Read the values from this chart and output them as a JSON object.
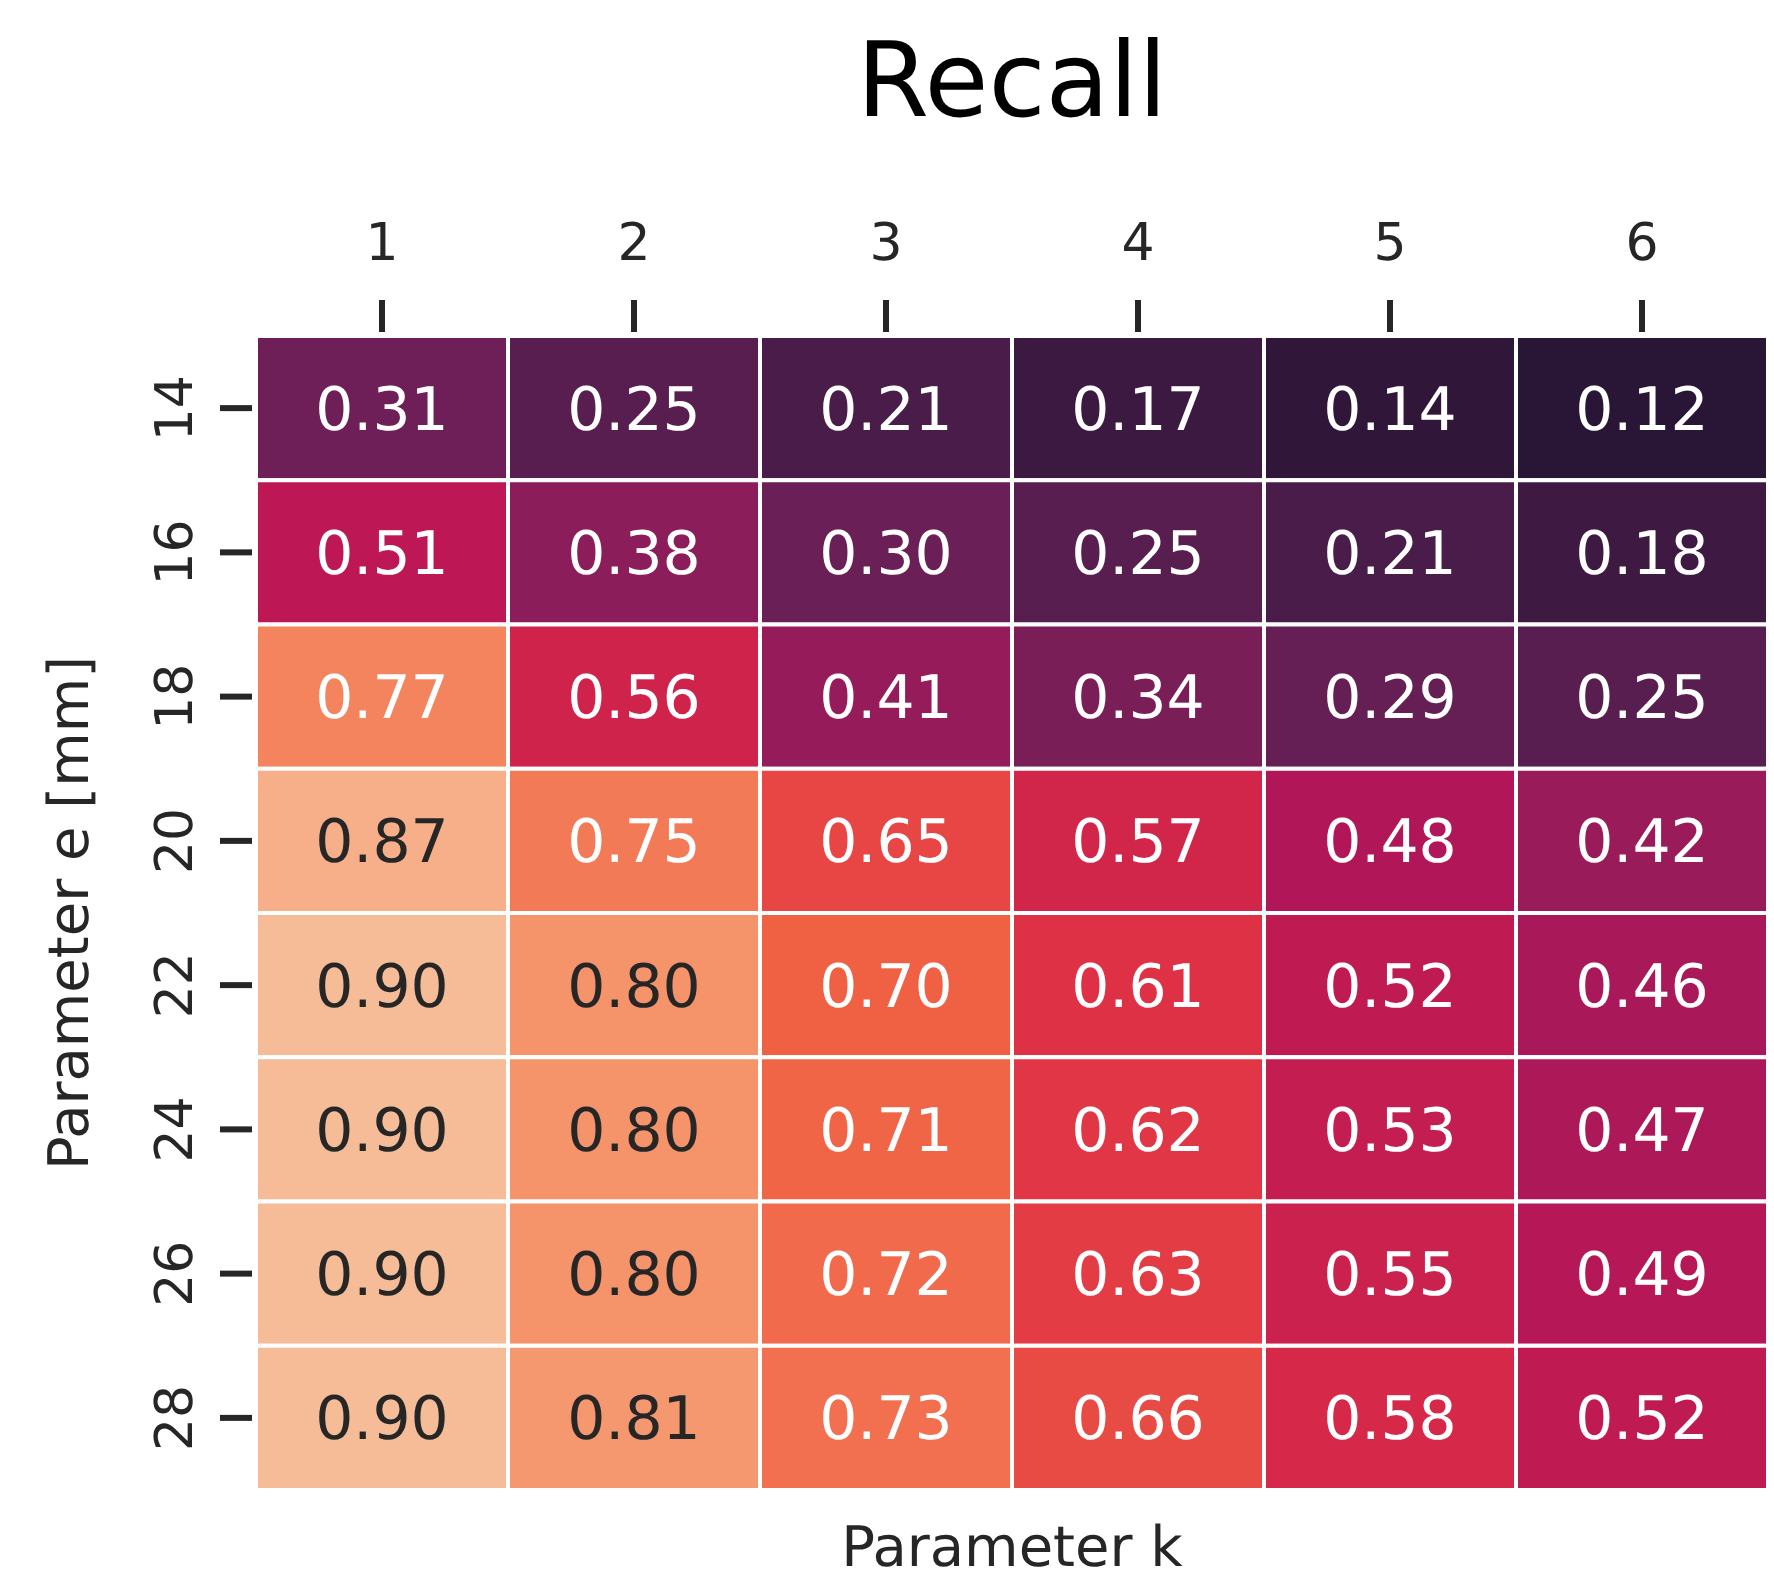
{
  "chart_data": {
    "type": "heatmap",
    "title": "Recall",
    "xlabel": "Parameter k",
    "ylabel": "Parameter e [mm]",
    "categories": [
      "1",
      "2",
      "3",
      "4",
      "5",
      "6"
    ],
    "y_categories": [
      "14",
      "16",
      "18",
      "20",
      "22",
      "24",
      "26",
      "28"
    ],
    "cells": [
      [
        0.31,
        0.25,
        0.21,
        0.17,
        0.14,
        0.12
      ],
      [
        0.51,
        0.38,
        0.3,
        0.25,
        0.21,
        0.18
      ],
      [
        0.77,
        0.56,
        0.41,
        0.34,
        0.29,
        0.25
      ],
      [
        0.87,
        0.75,
        0.65,
        0.57,
        0.48,
        0.42
      ],
      [
        0.9,
        0.8,
        0.7,
        0.61,
        0.52,
        0.46
      ],
      [
        0.9,
        0.8,
        0.71,
        0.62,
        0.53,
        0.47
      ],
      [
        0.9,
        0.8,
        0.72,
        0.63,
        0.55,
        0.49
      ],
      [
        0.9,
        0.81,
        0.73,
        0.66,
        0.58,
        0.52
      ]
    ],
    "cell_labels": [
      [
        "0.31",
        "0.25",
        "0.21",
        "0.17",
        "0.14",
        "0.12"
      ],
      [
        "0.51",
        "0.38",
        "0.30",
        "0.25",
        "0.21",
        "0.18"
      ],
      [
        "0.77",
        "0.56",
        "0.41",
        "0.34",
        "0.29",
        "0.25"
      ],
      [
        "0.87",
        "0.75",
        "0.65",
        "0.57",
        "0.48",
        "0.42"
      ],
      [
        "0.90",
        "0.80",
        "0.70",
        "0.61",
        "0.52",
        "0.46"
      ],
      [
        "0.90",
        "0.80",
        "0.71",
        "0.62",
        "0.53",
        "0.47"
      ],
      [
        "0.90",
        "0.80",
        "0.72",
        "0.63",
        "0.55",
        "0.49"
      ],
      [
        "0.90",
        "0.81",
        "0.73",
        "0.66",
        "0.58",
        "0.52"
      ]
    ]
  }
}
